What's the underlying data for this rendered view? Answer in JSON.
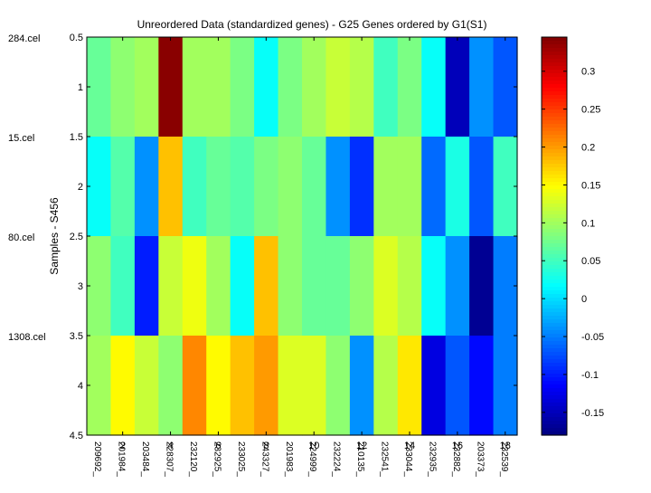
{
  "chart_data": {
    "type": "heatmap",
    "title": "Unreordered Data (standardized genes) - G25 Genes ordered by G1(S1)",
    "xlabel": "",
    "ylabel": "Samples - S456",
    "x_tick_values": [
      2,
      4,
      6,
      8,
      10,
      12,
      14,
      16,
      18
    ],
    "y_tick_labels": [
      "0.5",
      "1",
      "1.5",
      "2",
      "2.5",
      "3",
      "3.5",
      "4",
      "4.5"
    ],
    "y_range": [
      0.5,
      4.5
    ],
    "x_range": [
      0.5,
      18.5
    ],
    "gene_labels": [
      "209692_",
      "201984_",
      "203484_",
      "228307_",
      "232120_",
      "232925_",
      "233025_",
      "243327_",
      "201983_",
      "224999_",
      "232224_",
      "210135_",
      "232541_",
      "233044_",
      "232935_",
      "232882_",
      "203373_",
      "232539_"
    ],
    "sample_labels": [
      "284.cel",
      "15.cel",
      "80.cel",
      "1308.cel"
    ],
    "values": [
      [
        0.07,
        0.09,
        0.1,
        0.34,
        0.1,
        0.1,
        0.08,
        0.02,
        0.08,
        0.1,
        0.12,
        0.11,
        0.05,
        0.08,
        0.02,
        -0.15,
        -0.04,
        -0.07
      ],
      [
        0.02,
        0.06,
        -0.04,
        0.18,
        0.05,
        0.07,
        0.06,
        0.08,
        0.09,
        0.07,
        -0.04,
        -0.09,
        0.1,
        0.1,
        -0.06,
        0.03,
        -0.07,
        0.05
      ],
      [
        0.09,
        0.05,
        -0.1,
        0.12,
        0.14,
        0.1,
        0.02,
        0.18,
        0.09,
        0.07,
        0.07,
        0.09,
        0.13,
        0.11,
        0.02,
        -0.04,
        -0.17,
        -0.05
      ],
      [
        0.1,
        0.15,
        0.12,
        0.09,
        0.21,
        0.15,
        0.18,
        0.2,
        0.13,
        0.13,
        0.09,
        -0.04,
        0.11,
        0.16,
        -0.13,
        -0.07,
        -0.11,
        -0.05
      ]
    ],
    "colorbar": {
      "min": -0.18,
      "max": 0.345,
      "ticks": [
        -0.15,
        -0.1,
        -0.05,
        0,
        0.05,
        0.1,
        0.15,
        0.2,
        0.25,
        0.3
      ],
      "tick_labels": [
        "-0.15",
        "-0.1",
        "-0.05",
        "0",
        "0.05",
        "0.1",
        "0.15",
        "0.2",
        "0.25",
        "0.3"
      ],
      "colormap": "jet"
    }
  }
}
